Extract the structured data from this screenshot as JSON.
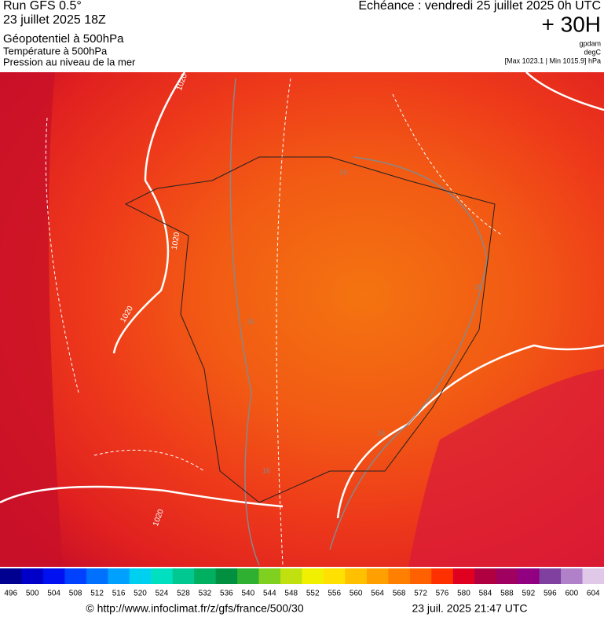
{
  "header": {
    "run": "Run GFS 0.5°",
    "run_date": "23 juillet 2025 18Z",
    "title": "Géopotentiel à 500hPa",
    "subtitle_1": "Température à 500hPa",
    "subtitle_2": "Pression au niveau de la mer",
    "valid": "Echéance : vendredi 25 juillet 2025 0h UTC",
    "lead": "+ 30H",
    "unit_1": "gpdam",
    "unit_2": "degC",
    "range": "[Max 1023.1 | Min 1015.9] hPa"
  },
  "map": {
    "labels": [
      "1020",
      "1020",
      "1020",
      "1020",
      "16",
      "16",
      "16",
      "16",
      "16"
    ]
  },
  "legend": {
    "values": [
      496,
      500,
      504,
      508,
      512,
      516,
      520,
      524,
      528,
      532,
      536,
      540,
      544,
      548,
      552,
      556,
      560,
      564,
      568,
      572,
      576,
      580,
      584,
      588,
      592,
      596,
      600,
      604
    ],
    "colors": [
      "#000090",
      "#0000c8",
      "#0010f0",
      "#0040ff",
      "#0070ff",
      "#00a0ff",
      "#00d0f0",
      "#00e0c0",
      "#00c890",
      "#00b060",
      "#009040",
      "#30b030",
      "#80d020",
      "#c0e010",
      "#f0f000",
      "#ffe000",
      "#ffc000",
      "#ffa000",
      "#ff8000",
      "#ff6000",
      "#ff3000",
      "#e00020",
      "#b00040",
      "#a00060",
      "#900080",
      "#8040a0",
      "#b080c8",
      "#e0c8e8"
    ]
  },
  "footer": {
    "source": "© http://www.infoclimat.fr/z/gfs/france/500/30",
    "generated": "23 juil. 2025 21:47 UTC"
  }
}
